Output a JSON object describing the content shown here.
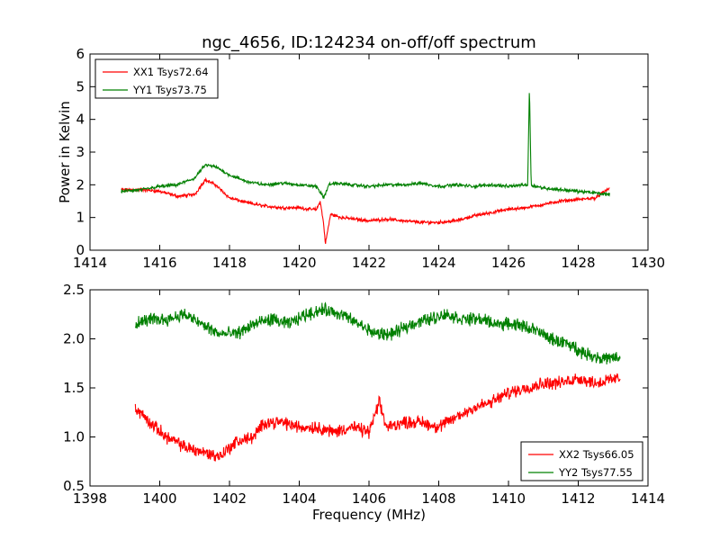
{
  "figure": {
    "title": "ngc_4656, ID:124234 on-off/off spectrum",
    "xlabel": "Frequency (MHz)",
    "ylabel": "Power in Kelvin"
  },
  "chart_data": [
    {
      "type": "line",
      "title": "ngc_4656, ID:124234 on-off/off spectrum",
      "xlabel": "",
      "ylabel": "Power in Kelvin",
      "xlim": [
        1414,
        1430
      ],
      "ylim": [
        0,
        6
      ],
      "xticks": [
        "1414",
        "1416",
        "1418",
        "1420",
        "1422",
        "1424",
        "1426",
        "1428",
        "1430"
      ],
      "yticks": [
        "0",
        "1",
        "2",
        "3",
        "4",
        "5",
        "6"
      ],
      "grid": false,
      "legend_position": "top-left",
      "series": [
        {
          "name": "XX1 Tsys72.64",
          "color": "#ff0000",
          "x": [
            1414.9,
            1415.5,
            1416.0,
            1416.5,
            1417.0,
            1417.3,
            1417.6,
            1418.0,
            1418.5,
            1419.0,
            1419.5,
            1420.0,
            1420.3,
            1420.5,
            1420.6,
            1420.7,
            1420.75,
            1420.9,
            1421.2,
            1421.6,
            1422.0,
            1422.5,
            1423.0,
            1423.5,
            1424.0,
            1424.5,
            1425.0,
            1425.5,
            1426.0,
            1426.5,
            1427.0,
            1427.5,
            1428.0,
            1428.5,
            1428.9
          ],
          "values": [
            1.85,
            1.85,
            1.8,
            1.65,
            1.7,
            2.15,
            2.0,
            1.6,
            1.45,
            1.35,
            1.3,
            1.3,
            1.25,
            1.25,
            1.5,
            0.8,
            0.2,
            1.1,
            1.0,
            0.95,
            0.9,
            0.95,
            0.9,
            0.85,
            0.85,
            0.9,
            1.05,
            1.15,
            1.25,
            1.3,
            1.4,
            1.5,
            1.55,
            1.6,
            1.9
          ]
        },
        {
          "name": "YY1 Tsys73.75",
          "color": "#008000",
          "x": [
            1414.9,
            1415.5,
            1416.0,
            1416.5,
            1417.0,
            1417.3,
            1417.6,
            1418.0,
            1418.5,
            1419.0,
            1419.5,
            1420.0,
            1420.5,
            1420.7,
            1420.85,
            1421.0,
            1421.5,
            1422.0,
            1422.5,
            1423.0,
            1423.5,
            1424.0,
            1424.5,
            1425.0,
            1425.5,
            1426.0,
            1426.4,
            1426.55,
            1426.6,
            1426.65,
            1426.8,
            1427.0,
            1427.5,
            1428.0,
            1428.5,
            1428.9
          ],
          "values": [
            1.8,
            1.85,
            1.95,
            2.0,
            2.2,
            2.6,
            2.55,
            2.3,
            2.1,
            2.0,
            2.05,
            2.0,
            1.95,
            1.6,
            2.0,
            2.05,
            2.0,
            1.95,
            2.0,
            2.0,
            2.05,
            1.95,
            2.0,
            1.95,
            2.0,
            1.95,
            2.0,
            2.0,
            5.0,
            2.0,
            1.95,
            1.9,
            1.85,
            1.8,
            1.75,
            1.7
          ]
        }
      ]
    },
    {
      "type": "line",
      "title": "",
      "xlabel": "Frequency (MHz)",
      "ylabel": "",
      "xlim": [
        1398,
        1414
      ],
      "ylim": [
        0.5,
        2.5
      ],
      "xticks": [
        "1398",
        "1400",
        "1402",
        "1404",
        "1406",
        "1408",
        "1410",
        "1412",
        "1414"
      ],
      "yticks": [
        "0.5",
        "1.0",
        "1.5",
        "2.0",
        "2.5"
      ],
      "grid": false,
      "legend_position": "bottom-right",
      "series": [
        {
          "name": "XX2 Tsys66.05",
          "color": "#ff0000",
          "x": [
            1399.3,
            1399.7,
            1400.2,
            1400.7,
            1401.2,
            1401.7,
            1402.2,
            1402.7,
            1403.0,
            1403.5,
            1404.0,
            1404.5,
            1405.0,
            1405.5,
            1406.0,
            1406.3,
            1406.5,
            1407.0,
            1407.5,
            1408.0,
            1408.5,
            1409.0,
            1409.5,
            1410.0,
            1410.5,
            1411.0,
            1411.5,
            1412.0,
            1412.5,
            1413.2
          ],
          "values": [
            1.3,
            1.15,
            1.0,
            0.9,
            0.85,
            0.8,
            0.95,
            1.0,
            1.15,
            1.15,
            1.1,
            1.1,
            1.05,
            1.1,
            1.05,
            1.35,
            1.1,
            1.15,
            1.15,
            1.1,
            1.2,
            1.3,
            1.35,
            1.45,
            1.5,
            1.55,
            1.55,
            1.6,
            1.55,
            1.6
          ]
        },
        {
          "name": "YY2 Tsys77.55",
          "color": "#008000",
          "x": [
            1399.3,
            1399.7,
            1400.2,
            1400.7,
            1401.2,
            1401.7,
            1402.2,
            1402.7,
            1403.2,
            1403.7,
            1404.2,
            1404.7,
            1405.2,
            1405.7,
            1406.2,
            1406.7,
            1407.2,
            1407.7,
            1408.2,
            1408.7,
            1409.2,
            1409.7,
            1410.2,
            1410.7,
            1411.2,
            1411.7,
            1412.2,
            1412.7,
            1413.2
          ],
          "values": [
            2.15,
            2.2,
            2.2,
            2.25,
            2.15,
            2.05,
            2.05,
            2.15,
            2.2,
            2.15,
            2.25,
            2.3,
            2.25,
            2.15,
            2.05,
            2.05,
            2.15,
            2.2,
            2.25,
            2.2,
            2.2,
            2.15,
            2.15,
            2.1,
            2.0,
            1.95,
            1.85,
            1.8,
            1.8
          ]
        }
      ]
    }
  ]
}
